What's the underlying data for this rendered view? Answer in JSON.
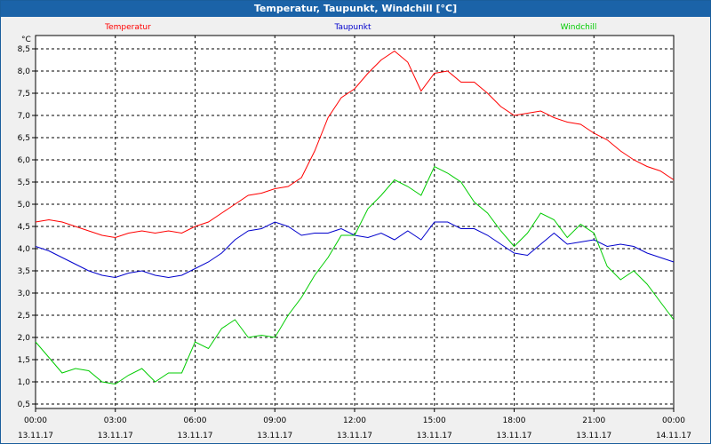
{
  "window": {
    "title": "Temperatur, Taupunkt, Windchill [°C]"
  },
  "chart_data": {
    "type": "line",
    "title": "Temperatur, Taupunkt, Windchill [°C]",
    "ylabel": "°C",
    "ylim": [
      0.4,
      8.8
    ],
    "xlim": [
      0,
      24
    ],
    "yticks": [
      0.5,
      1.0,
      1.5,
      2.0,
      2.5,
      3.0,
      3.5,
      4.0,
      4.5,
      5.0,
      5.5,
      6.0,
      6.5,
      7.0,
      7.5,
      8.0,
      8.5
    ],
    "ytick_labels": [
      "0,5",
      "1,0",
      "1,5",
      "2,0",
      "2,5",
      "3,0",
      "3,5",
      "4,0",
      "4,5",
      "5,0",
      "5,5",
      "6,0",
      "6,5",
      "7,0",
      "7,5",
      "8,0",
      "8,5"
    ],
    "xticks": [
      {
        "hour": 0,
        "time": "00:00",
        "date": "13.11.17"
      },
      {
        "hour": 3,
        "time": "03:00",
        "date": "13.11.17"
      },
      {
        "hour": 6,
        "time": "06:00",
        "date": "13.11.17"
      },
      {
        "hour": 9,
        "time": "09:00",
        "date": "13.11.17"
      },
      {
        "hour": 12,
        "time": "12:00",
        "date": "13.11.17"
      },
      {
        "hour": 15,
        "time": "15:00",
        "date": "13.11.17"
      },
      {
        "hour": 18,
        "time": "18:00",
        "date": "13.11.17"
      },
      {
        "hour": 21,
        "time": "21:00",
        "date": "13.11.17"
      },
      {
        "hour": 24,
        "time": "00:00",
        "date": "14.11.17"
      }
    ],
    "series": [
      {
        "name": "Temperatur",
        "color": "#ff0000",
        "x": [
          0,
          0.5,
          1,
          1.5,
          2,
          2.5,
          3,
          3.5,
          4,
          4.5,
          5,
          5.5,
          6,
          6.5,
          7,
          7.5,
          8,
          8.5,
          9,
          9.5,
          10,
          10.5,
          11,
          11.5,
          12,
          12.5,
          13,
          13.5,
          14,
          14.5,
          15,
          15.5,
          16,
          16.5,
          17,
          17.5,
          18,
          18.5,
          19,
          19.5,
          20,
          20.5,
          21,
          21.5,
          22,
          22.5,
          23,
          23.5,
          24
        ],
        "values": [
          4.6,
          4.65,
          4.6,
          4.5,
          4.4,
          4.3,
          4.25,
          4.35,
          4.4,
          4.35,
          4.4,
          4.35,
          4.5,
          4.6,
          4.8,
          5.0,
          5.2,
          5.25,
          5.35,
          5.4,
          5.6,
          6.2,
          6.95,
          7.4,
          7.6,
          7.95,
          8.25,
          8.45,
          8.2,
          7.55,
          7.95,
          8.0,
          7.75,
          7.75,
          7.5,
          7.2,
          7.0,
          7.05,
          7.1,
          6.95,
          6.85,
          6.8,
          6.6,
          6.45,
          6.2,
          6.0,
          5.85,
          5.75,
          5.55
        ]
      },
      {
        "name": "Taupunkt",
        "color": "#0000cc",
        "x": [
          0,
          0.5,
          1,
          1.5,
          2,
          2.5,
          3,
          3.5,
          4,
          4.5,
          5,
          5.5,
          6,
          6.5,
          7,
          7.5,
          8,
          8.5,
          9,
          9.5,
          10,
          10.5,
          11,
          11.5,
          12,
          12.5,
          13,
          13.5,
          14,
          14.5,
          15,
          15.5,
          16,
          16.5,
          17,
          17.5,
          18,
          18.5,
          19,
          19.5,
          20,
          20.5,
          21,
          21.5,
          22,
          22.5,
          23,
          23.5,
          24
        ],
        "values": [
          4.05,
          3.95,
          3.8,
          3.65,
          3.5,
          3.4,
          3.35,
          3.45,
          3.5,
          3.4,
          3.35,
          3.4,
          3.55,
          3.7,
          3.9,
          4.2,
          4.4,
          4.45,
          4.6,
          4.5,
          4.3,
          4.35,
          4.35,
          4.45,
          4.3,
          4.25,
          4.35,
          4.2,
          4.4,
          4.2,
          4.6,
          4.6,
          4.45,
          4.45,
          4.3,
          4.1,
          3.9,
          3.85,
          4.1,
          4.35,
          4.1,
          4.15,
          4.2,
          4.05,
          4.1,
          4.05,
          3.9,
          3.8,
          3.7
        ]
      },
      {
        "name": "Windchill",
        "color": "#00cc00",
        "x": [
          0,
          0.5,
          1,
          1.5,
          2,
          2.5,
          3,
          3.5,
          4,
          4.5,
          5,
          5.5,
          6,
          6.5,
          7,
          7.5,
          8,
          8.5,
          9,
          9.5,
          10,
          10.5,
          11,
          11.5,
          12,
          12.5,
          13,
          13.5,
          14,
          14.5,
          15,
          15.5,
          16,
          16.5,
          17,
          17.5,
          18,
          18.5,
          19,
          19.5,
          20,
          20.5,
          21,
          21.5,
          22,
          22.5,
          23,
          23.5,
          24
        ],
        "values": [
          1.9,
          1.55,
          1.2,
          1.3,
          1.25,
          1.0,
          0.95,
          1.15,
          1.3,
          1.0,
          1.2,
          1.2,
          1.9,
          1.75,
          2.2,
          2.4,
          2.0,
          2.05,
          2.0,
          2.5,
          2.9,
          3.4,
          3.8,
          4.3,
          4.3,
          4.9,
          5.2,
          5.55,
          5.4,
          5.2,
          5.85,
          5.7,
          5.5,
          5.05,
          4.8,
          4.4,
          4.05,
          4.35,
          4.8,
          4.65,
          4.25,
          4.55,
          4.35,
          3.6,
          3.3,
          3.5,
          3.2,
          2.8,
          2.4
        ]
      }
    ]
  }
}
